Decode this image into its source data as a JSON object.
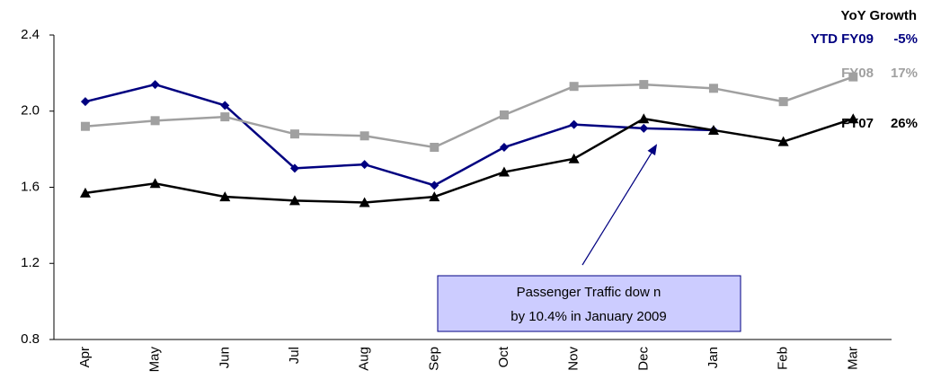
{
  "chart_data": {
    "type": "line",
    "legend_title": "YoY Growth",
    "categories": [
      "Apr",
      "May",
      "Jun",
      "Jul",
      "Aug",
      "Sep",
      "Oct",
      "Nov",
      "Dec",
      "Jan",
      "Feb",
      "Mar"
    ],
    "series": [
      {
        "name": "YTD FY09",
        "growth": "-5%",
        "color": "#000080",
        "marker": "diamond",
        "values": [
          2.05,
          2.14,
          2.03,
          1.7,
          1.72,
          1.61,
          1.81,
          1.93,
          1.91,
          1.9,
          null,
          null
        ]
      },
      {
        "name": "FY08",
        "growth": "17%",
        "color": "#a0a0a0",
        "marker": "square",
        "values": [
          1.92,
          1.95,
          1.97,
          1.88,
          1.87,
          1.81,
          1.98,
          2.13,
          2.14,
          2.12,
          2.05,
          2.18
        ]
      },
      {
        "name": "FY07",
        "growth": "26%",
        "color": "#000000",
        "marker": "triangle",
        "values": [
          1.57,
          1.62,
          1.55,
          1.53,
          1.52,
          1.55,
          1.68,
          1.75,
          1.96,
          1.9,
          1.84,
          1.96
        ]
      }
    ],
    "ylim": [
      0.8,
      2.4
    ],
    "yticks": [
      0.8,
      1.2,
      1.6,
      {
        "value": 2,
        "label": "2.0"
      },
      2.4
    ],
    "annotation": [
      "Passenger Traffic dow n",
      "by 10.4% in January 2009"
    ]
  }
}
